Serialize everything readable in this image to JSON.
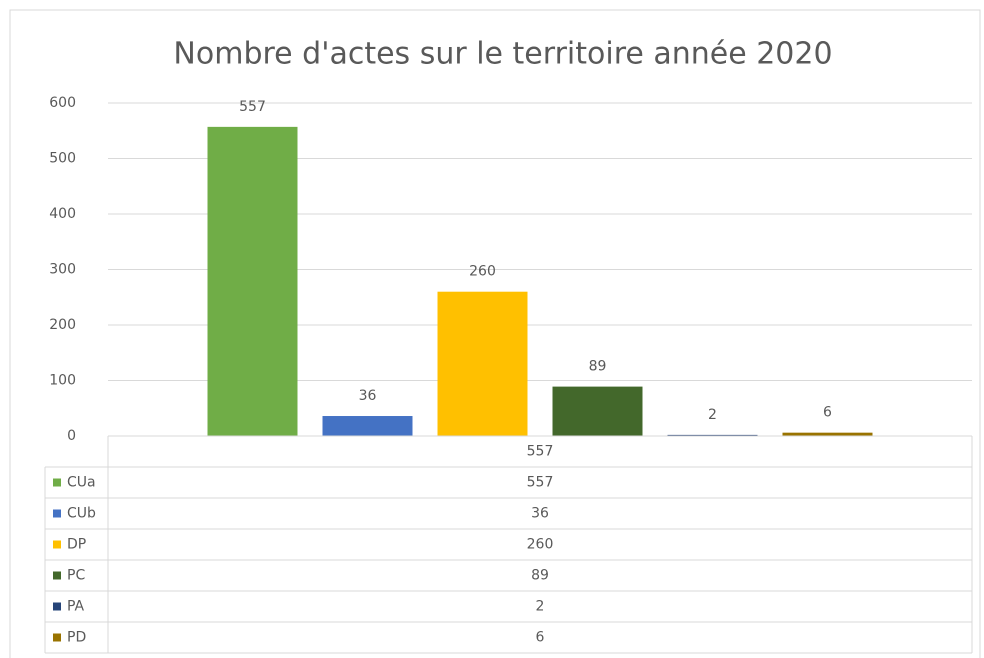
{
  "chart_data": {
    "type": "bar",
    "title": "Nombre d'actes sur le territoire année 2020",
    "categories": [
      "557"
    ],
    "series": [
      {
        "name": "CUa",
        "color": "#70ad47",
        "values": [
          557
        ]
      },
      {
        "name": "CUb",
        "color": "#4472c4",
        "values": [
          36
        ]
      },
      {
        "name": "DP",
        "color": "#ffc000",
        "values": [
          260
        ]
      },
      {
        "name": "PC",
        "color": "#43682b",
        "values": [
          89
        ]
      },
      {
        "name": "PA",
        "color": "#264478",
        "values": [
          2
        ]
      },
      {
        "name": "PD",
        "color": "#997300",
        "values": [
          6
        ]
      }
    ],
    "ylim": [
      0,
      600
    ],
    "yticks": [
      0,
      100,
      200,
      300,
      400,
      500,
      600
    ],
    "grid": true,
    "data_table": true
  }
}
